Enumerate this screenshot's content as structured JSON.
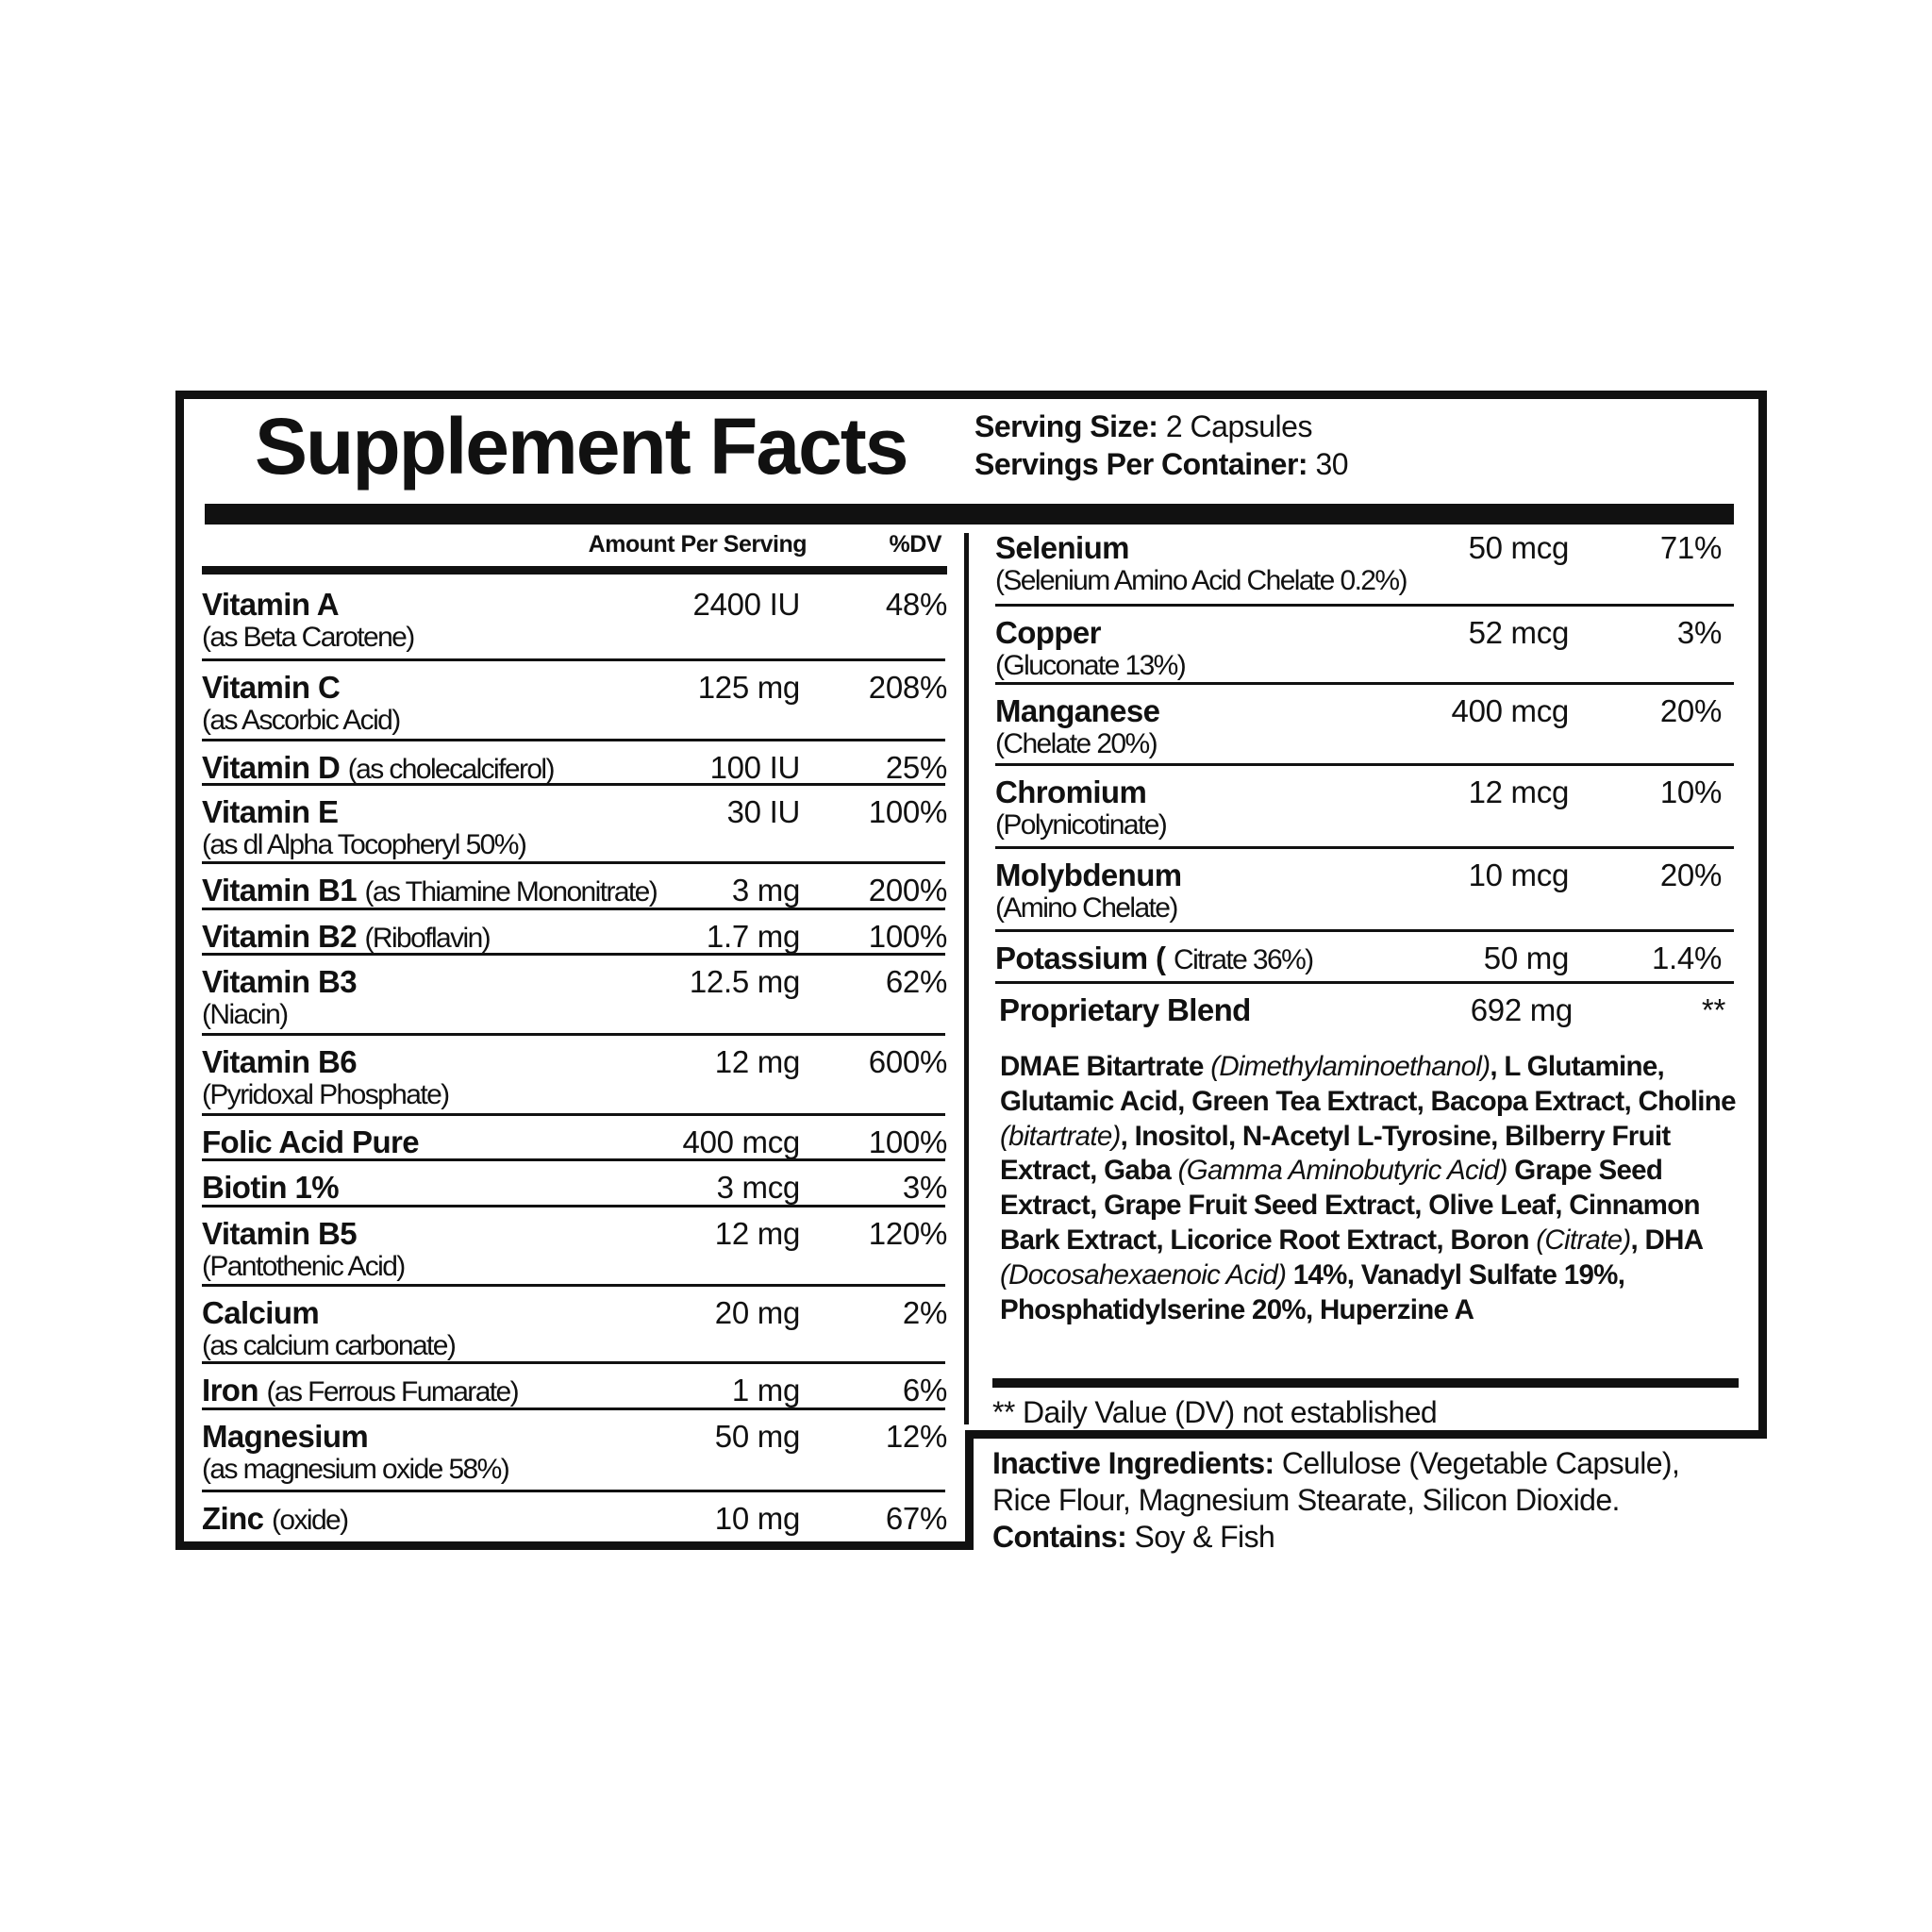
{
  "title": "Supplement Facts",
  "serving": {
    "size_label": "Serving Size:",
    "size_value": "2 Capsules",
    "per_container_label": "Servings Per Container:",
    "per_container_value": "30"
  },
  "header": {
    "amount": "Amount Per Serving",
    "dv": "%DV"
  },
  "left_rows": [
    {
      "name": "Vitamin A",
      "sub": "(as Beta Carotene)",
      "amount": "2400 IU",
      "dv": "48%"
    },
    {
      "name": "Vitamin C",
      "sub": "(as Ascorbic Acid)",
      "amount": "125 mg",
      "dv": "208%"
    },
    {
      "name": "Vitamin D",
      "inline": "(as cholecalciferol)",
      "amount": "100 IU",
      "dv": "25%"
    },
    {
      "name": "Vitamin E",
      "sub": "(as dl Alpha Tocopheryl 50%)",
      "amount": "30 IU",
      "dv": "100%"
    },
    {
      "name": "Vitamin B1",
      "inline": "(as Thiamine Mononitrate)",
      "amount": "3 mg",
      "dv": "200%"
    },
    {
      "name": "Vitamin B2",
      "inline": "(Riboflavin)",
      "amount": "1.7 mg",
      "dv": "100%"
    },
    {
      "name": "Vitamin B3",
      "sub": "(Niacin)",
      "amount": "12.5 mg",
      "dv": "62%"
    },
    {
      "name": "Vitamin B6",
      "sub": "(Pyridoxal Phosphate)",
      "amount": "12 mg",
      "dv": "600%"
    },
    {
      "name": "Folic Acid Pure",
      "amount": "400 mcg",
      "dv": "100%"
    },
    {
      "name": "Biotin 1%",
      "amount": "3 mcg",
      "dv": "3%"
    },
    {
      "name": "Vitamin B5",
      "sub": "(Pantothenic Acid)",
      "amount": "12 mg",
      "dv": "120%"
    },
    {
      "name": "Calcium",
      "sub": "(as calcium carbonate)",
      "amount": "20 mg",
      "dv": "2%"
    },
    {
      "name": "Iron",
      "inline": "(as Ferrous Fumarate)",
      "amount": "1 mg",
      "dv": "6%"
    },
    {
      "name": "Magnesium",
      "sub": "(as magnesium oxide 58%)",
      "amount": "50 mg",
      "dv": "12%"
    },
    {
      "name": "Zinc",
      "inline": "(oxide)",
      "amount": "10 mg",
      "dv": "67%"
    }
  ],
  "right_rows": [
    {
      "name": "Selenium",
      "sub": "(Selenium Amino Acid Chelate 0.2%)",
      "amount": "50 mcg",
      "dv": "71%"
    },
    {
      "name": "Copper",
      "sub": "(Gluconate 13%)",
      "amount": "52 mcg",
      "dv": "3%"
    },
    {
      "name": "Manganese",
      "sub": "(Chelate 20%)",
      "amount": "400 mcg",
      "dv": "20%"
    },
    {
      "name": "Chromium",
      "sub": "(Polynicotinate)",
      "amount": "12 mcg",
      "dv": "10%"
    },
    {
      "name": "Molybdenum",
      "sub": "(Amino Chelate)",
      "amount": "10 mcg",
      "dv": "20%"
    },
    {
      "name": "Potassium (",
      "inline": "Citrate 36%)",
      "amount": "50 mg",
      "dv": "1.4%"
    },
    {
      "name": "Proprietary Blend",
      "amount": "692 mg",
      "dv": "**"
    }
  ],
  "blend_parts": [
    {
      "t": "DMAE Bitartrate ",
      "i": false
    },
    {
      "t": "(Dimethylaminoethanol)",
      "i": true
    },
    {
      "t": ", L Glutamine, Glutamic Acid, Green Tea Extract, Bacopa Extract, Choline ",
      "i": false
    },
    {
      "t": "(bitartrate)",
      "i": true
    },
    {
      "t": ", Inositol, N-Acetyl L-Tyrosine, Bilberry Fruit Extract, Gaba ",
      "i": false
    },
    {
      "t": "(Gamma Aminobutyric Acid)",
      "i": true
    },
    {
      "t": " Grape Seed Extract, Grape Fruit Seed Extract, Olive Leaf, Cinnamon Bark Extract, Licorice Root Extract, Boron ",
      "i": false
    },
    {
      "t": "(Citrate)",
      "i": true
    },
    {
      "t": ", DHA ",
      "i": false
    },
    {
      "t": "(Docosahexaenoic Acid)",
      "i": true
    },
    {
      "t": " 14%, Vanadyl Sulfate 19%, Phosphatidylserine 20%, Huperzine A",
      "i": false
    }
  ],
  "footnote": "** Daily Value (DV) not established",
  "inactive": {
    "label": "Inactive Ingredients:",
    "line1": " Cellulose (Vegetable Capsule),",
    "line2": "Rice Flour, Magnesium Stearate, Silicon Dioxide.",
    "contains_label": "Contains:",
    "contains_value": " Soy & Fish"
  }
}
